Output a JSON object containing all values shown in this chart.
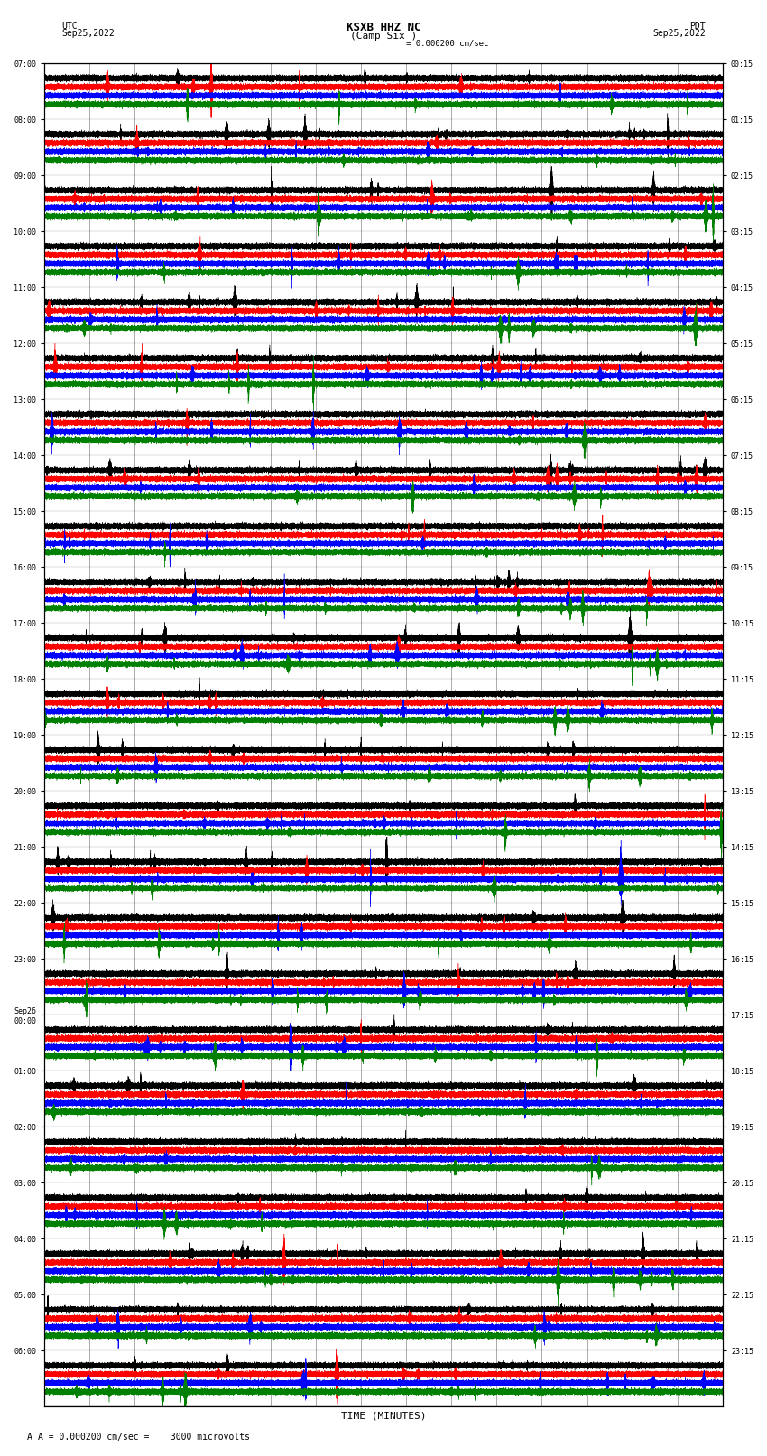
{
  "title": "KSXB HHZ NC",
  "subtitle": "(Camp Six )",
  "scale_label": "= 0.000200 cm/sec",
  "bottom_label": "A = 0.000200 cm/sec =    3000 microvolts",
  "left_header": "UTC\nSep25,2022",
  "right_header": "PDT\nSep25,2022",
  "xlabel": "TIME (MINUTES)",
  "left_times": [
    "07:00",
    "08:00",
    "09:00",
    "10:00",
    "11:00",
    "12:00",
    "13:00",
    "14:00",
    "15:00",
    "16:00",
    "17:00",
    "18:00",
    "19:00",
    "20:00",
    "21:00",
    "22:00",
    "23:00",
    "Sep26\n00:00",
    "01:00",
    "02:00",
    "03:00",
    "04:00",
    "05:00",
    "06:00"
  ],
  "right_times": [
    "00:15",
    "01:15",
    "02:15",
    "03:15",
    "04:15",
    "05:15",
    "06:15",
    "07:15",
    "08:15",
    "09:15",
    "10:15",
    "11:15",
    "12:15",
    "13:15",
    "14:15",
    "15:15",
    "16:15",
    "17:15",
    "18:15",
    "19:15",
    "20:15",
    "21:15",
    "22:15",
    "23:15"
  ],
  "n_rows": 24,
  "n_channels": 4,
  "colors": [
    "black",
    "red",
    "blue",
    "green"
  ],
  "fig_width": 8.5,
  "fig_height": 16.13,
  "bg_color": "white",
  "trace_lw": 0.3,
  "minutes": 15,
  "sample_rate": 100,
  "amplitude_scale": 0.35,
  "grid_color": "#888888",
  "grid_lw": 0.5
}
